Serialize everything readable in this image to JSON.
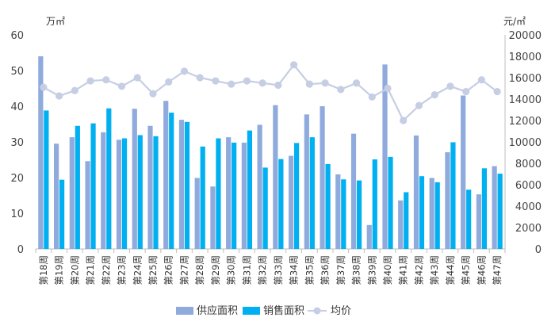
{
  "chart_data": {
    "type": "bar",
    "title": "",
    "xlabel": "",
    "left_unit": "万㎡",
    "right_unit": "元/㎡",
    "categories": [
      "第18周",
      "第19周",
      "第20周",
      "第21周",
      "第22周",
      "第23周",
      "第24周",
      "第25周",
      "第26周",
      "第27周",
      "第28周",
      "第29周",
      "第30周",
      "第31周",
      "第32周",
      "第33周",
      "第34周",
      "第35周",
      "第36周",
      "第37周",
      "第38周",
      "第39周",
      "第40周",
      "第41周",
      "第42周",
      "第43周",
      "第44周",
      "第45周",
      "第46周",
      "第47周"
    ],
    "left_axis": {
      "min": 0,
      "max": 60,
      "step": 10
    },
    "right_axis": {
      "min": 0,
      "max": 20000,
      "step": 2000
    },
    "series": [
      {
        "name": "供应面积",
        "kind": "bar",
        "axis": "left",
        "color": "#8FAADC",
        "values": [
          54.0,
          29.5,
          31.3,
          24.6,
          32.7,
          30.6,
          39.3,
          34.5,
          41.5,
          36.2,
          19.9,
          17.5,
          31.3,
          29.8,
          34.8,
          40.3,
          26.1,
          37.7,
          40.0,
          20.9,
          32.3,
          6.7,
          51.7,
          13.6,
          31.8,
          19.9,
          27.1,
          43.0,
          15.3,
          23.2
        ]
      },
      {
        "name": "销售面积",
        "kind": "bar",
        "axis": "left",
        "color": "#00B0F0",
        "values": [
          38.8,
          19.4,
          34.5,
          35.2,
          39.4,
          31.0,
          31.9,
          31.6,
          38.2,
          35.6,
          28.7,
          31.0,
          29.8,
          33.2,
          22.8,
          25.2,
          29.7,
          31.3,
          23.8,
          19.5,
          19.2,
          25.1,
          25.8,
          15.9,
          20.4,
          18.7,
          29.9,
          16.6,
          22.6,
          21.1
        ]
      },
      {
        "name": "均价",
        "kind": "line",
        "axis": "right",
        "color": "#C6CEE4",
        "values": [
          15100,
          14300,
          14800,
          15700,
          15800,
          15200,
          16000,
          14500,
          15600,
          16600,
          16000,
          15700,
          15400,
          15700,
          15500,
          15300,
          17200,
          15400,
          15500,
          14900,
          15500,
          14200,
          15000,
          12000,
          13400,
          14400,
          15200,
          14700,
          15800,
          14700
        ]
      }
    ],
    "legend_position": "bottom",
    "grid": false
  }
}
